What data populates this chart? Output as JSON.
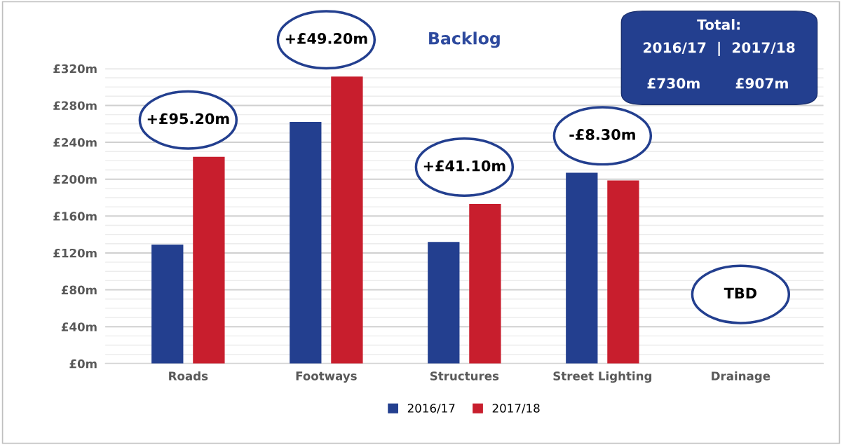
{
  "chart_data": {
    "type": "bar",
    "title": "Backlog",
    "categories": [
      "Roads",
      "Footways",
      "Structures",
      "Street Lighting",
      "Drainage"
    ],
    "series": [
      {
        "name": "2016/17",
        "color": "#233f8f",
        "values": [
          129,
          262,
          132,
          207,
          null
        ]
      },
      {
        "name": "2017/18",
        "color": "#c81e2d",
        "values": [
          224.2,
          311.2,
          173.1,
          198.7,
          null
        ]
      }
    ],
    "ylim": [
      0,
      320
    ],
    "yticks": [
      {
        "value": 0,
        "label": "£0m"
      },
      {
        "value": 10,
        "label": null
      },
      {
        "value": 20,
        "label": null
      },
      {
        "value": 30,
        "label": null
      },
      {
        "value": 40,
        "label": "£40m"
      },
      {
        "value": 50,
        "label": null
      },
      {
        "value": 60,
        "label": null
      },
      {
        "value": 70,
        "label": null
      },
      {
        "value": 80,
        "label": "£80m"
      },
      {
        "value": 90,
        "label": null
      },
      {
        "value": 100,
        "label": null
      },
      {
        "value": 110,
        "label": null
      },
      {
        "value": 120,
        "label": "£120m"
      },
      {
        "value": 130,
        "label": null
      },
      {
        "value": 140,
        "label": null
      },
      {
        "value": 150,
        "label": null
      },
      {
        "value": 160,
        "label": "£160m"
      },
      {
        "value": 170,
        "label": null
      },
      {
        "value": 180,
        "label": null
      },
      {
        "value": 190,
        "label": null
      },
      {
        "value": 200,
        "label": "£200m"
      },
      {
        "value": 210,
        "label": null
      },
      {
        "value": 220,
        "label": null
      },
      {
        "value": 230,
        "label": null
      },
      {
        "value": 240,
        "label": "£240m"
      },
      {
        "value": 250,
        "label": null
      },
      {
        "value": 260,
        "label": null
      },
      {
        "value": 270,
        "label": null
      },
      {
        "value": 280,
        "label": "£280m"
      },
      {
        "value": 290,
        "label": null
      },
      {
        "value": 300,
        "label": null
      },
      {
        "value": 310,
        "label": null
      },
      {
        "value": 320,
        "label": "£320m"
      }
    ],
    "grid": "y",
    "legend": "bottom",
    "annotations": [
      "+£95.20m",
      "+£49.20m",
      "+£41.10m",
      "-£8.30m",
      "TBD",
      "Total:",
      "2016/17  |  2017/18",
      "£730m",
      "£907m"
    ]
  }
}
